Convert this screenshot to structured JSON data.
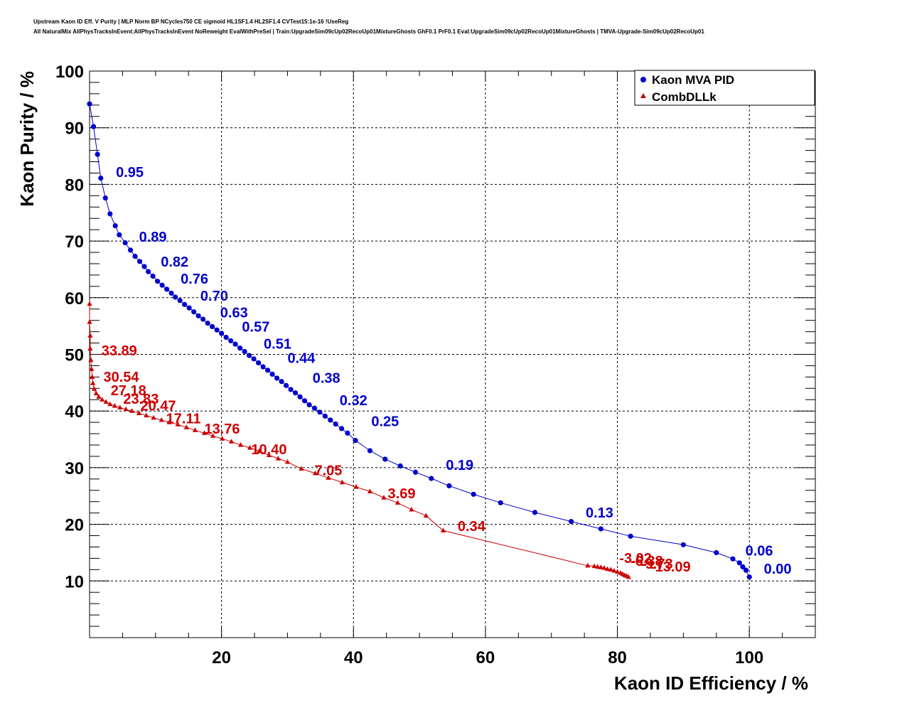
{
  "chart_data": {
    "type": "scatter",
    "title": [
      "Upstream Kaon ID Eff. V Purity | MLP Norm BP NCycles750 CE sigmoid HL1SF1.4 HL2SF1.4 CVTest15:1e-16 !UseReg",
      "All NaturalMix AllPhysTracksInEvent:AllPhysTracksInEvent NoReweight EvalWithPreSel | Train:UpgradeSim09cUp02RecoUp01MixtureGhosts GhF0.1 PrF0.1 Eval:UpgradeSim09cUp02RecoUp01MixtureGhosts | TMVA-Upgrade-Sim09cUp02RecoUp01"
    ],
    "xlabel": "Kaon ID Efficiency / %",
    "ylabel": "Kaon Purity / %",
    "xlim": [
      0,
      110
    ],
    "ylim": [
      0,
      100
    ],
    "xticks": [
      "20",
      "40",
      "60",
      "80",
      "100"
    ],
    "yticks": [
      "10",
      "20",
      "30",
      "40",
      "50",
      "60",
      "70",
      "80",
      "90",
      "100"
    ],
    "grid": true,
    "legend_position": "top-right",
    "series": [
      {
        "name": "Kaon MVA PID",
        "color": "#0000cc",
        "marker": "circle",
        "points": [
          [
            0.0,
            94.2
          ],
          [
            0.6,
            90.2
          ],
          [
            1.2,
            85.3
          ],
          [
            1.7,
            81.1
          ],
          [
            2.4,
            77.6
          ],
          [
            3.1,
            74.8
          ],
          [
            3.9,
            72.7
          ],
          [
            4.5,
            71.1
          ],
          [
            5.4,
            69.7
          ],
          [
            6.2,
            68.4
          ],
          [
            6.9,
            67.3
          ],
          [
            7.6,
            66.4
          ],
          [
            8.3,
            65.5
          ],
          [
            8.9,
            64.6
          ],
          [
            9.6,
            63.8
          ],
          [
            10.3,
            62.9
          ],
          [
            11.0,
            62.2
          ],
          [
            11.7,
            61.5
          ],
          [
            12.4,
            60.8
          ],
          [
            13.0,
            60.1
          ],
          [
            13.7,
            59.5
          ],
          [
            14.4,
            58.8
          ],
          [
            15.1,
            58.2
          ],
          [
            15.8,
            57.5
          ],
          [
            16.5,
            56.8
          ],
          [
            17.2,
            56.2
          ],
          [
            17.9,
            55.5
          ],
          [
            18.6,
            54.9
          ],
          [
            19.3,
            54.3
          ],
          [
            20.0,
            53.7
          ],
          [
            20.7,
            53.0
          ],
          [
            21.4,
            52.4
          ],
          [
            22.1,
            51.8
          ],
          [
            22.8,
            51.1
          ],
          [
            23.5,
            50.5
          ],
          [
            24.2,
            49.8
          ],
          [
            24.9,
            49.2
          ],
          [
            25.6,
            48.5
          ],
          [
            26.3,
            47.8
          ],
          [
            27.0,
            47.2
          ],
          [
            27.7,
            46.5
          ],
          [
            28.4,
            45.8
          ],
          [
            29.1,
            45.2
          ],
          [
            29.8,
            44.5
          ],
          [
            30.5,
            43.8
          ],
          [
            31.2,
            43.2
          ],
          [
            31.9,
            42.5
          ],
          [
            32.6,
            41.8
          ],
          [
            33.3,
            41.1
          ],
          [
            34.1,
            40.5
          ],
          [
            34.9,
            39.8
          ],
          [
            35.7,
            39.1
          ],
          [
            36.5,
            38.4
          ],
          [
            37.3,
            37.7
          ],
          [
            38.2,
            36.9
          ],
          [
            39.1,
            36.1
          ],
          [
            40.3,
            34.8
          ],
          [
            42.5,
            33.0
          ],
          [
            44.8,
            31.5
          ],
          [
            47.1,
            30.3
          ],
          [
            49.4,
            29.2
          ],
          [
            51.8,
            28.1
          ],
          [
            54.5,
            26.8
          ],
          [
            58.2,
            25.3
          ],
          [
            62.3,
            23.8
          ],
          [
            67.5,
            22.1
          ],
          [
            73.0,
            20.5
          ],
          [
            77.5,
            19.2
          ],
          [
            82.0,
            17.9
          ],
          [
            90.0,
            16.4
          ],
          [
            95.0,
            15.0
          ],
          [
            97.5,
            13.9
          ],
          [
            98.5,
            13.2
          ],
          [
            99.0,
            12.5
          ],
          [
            99.5,
            11.9
          ],
          [
            100.0,
            10.7
          ]
        ],
        "annotations": [
          {
            "text": "0.95",
            "x": 4.0,
            "y": 81.3
          },
          {
            "text": "0.89",
            "x": 7.5,
            "y": 69.9
          },
          {
            "text": "0.82",
            "x": 10.8,
            "y": 65.5
          },
          {
            "text": "0.76",
            "x": 13.8,
            "y": 62.5
          },
          {
            "text": "0.70",
            "x": 16.8,
            "y": 59.5
          },
          {
            "text": "0.63",
            "x": 19.8,
            "y": 56.5
          },
          {
            "text": "0.57",
            "x": 23.1,
            "y": 54.0
          },
          {
            "text": "0.51",
            "x": 26.4,
            "y": 51.0
          },
          {
            "text": "0.44",
            "x": 30.0,
            "y": 48.5
          },
          {
            "text": "0.38",
            "x": 33.8,
            "y": 45.0
          },
          {
            "text": "0.32",
            "x": 37.9,
            "y": 41.0
          },
          {
            "text": "0.25",
            "x": 42.7,
            "y": 37.3
          },
          {
            "text": "0.19",
            "x": 54.0,
            "y": 29.6
          },
          {
            "text": "0.13",
            "x": 75.2,
            "y": 21.2
          },
          {
            "text": "0.06",
            "x": 99.4,
            "y": 14.5
          },
          {
            "text": "0.00",
            "x": 102.2,
            "y": 11.3
          }
        ]
      },
      {
        "name": "CombDLLk",
        "color": "#cc0000",
        "marker": "triangle",
        "points": [
          [
            0.0,
            58.9
          ],
          [
            0.0,
            55.7
          ],
          [
            0.1,
            53.3
          ],
          [
            0.1,
            51.0
          ],
          [
            0.2,
            49.0
          ],
          [
            0.3,
            47.4
          ],
          [
            0.4,
            46.0
          ],
          [
            0.5,
            44.9
          ],
          [
            0.7,
            43.9
          ],
          [
            1.0,
            43.1
          ],
          [
            1.4,
            42.5
          ],
          [
            1.9,
            42.0
          ],
          [
            2.5,
            41.6
          ],
          [
            3.1,
            41.2
          ],
          [
            3.8,
            40.9
          ],
          [
            4.6,
            40.6
          ],
          [
            5.5,
            40.3
          ],
          [
            6.4,
            40.0
          ],
          [
            7.5,
            39.6
          ],
          [
            8.6,
            39.2
          ],
          [
            9.7,
            38.8
          ],
          [
            10.9,
            38.4
          ],
          [
            12.1,
            38.0
          ],
          [
            13.4,
            37.6
          ],
          [
            14.7,
            37.1
          ],
          [
            16.0,
            36.6
          ],
          [
            17.4,
            36.1
          ],
          [
            18.7,
            35.6
          ],
          [
            20.1,
            35.1
          ],
          [
            21.5,
            34.6
          ],
          [
            22.9,
            34.0
          ],
          [
            24.3,
            33.5
          ],
          [
            25.7,
            32.9
          ],
          [
            27.2,
            32.2
          ],
          [
            28.6,
            31.6
          ],
          [
            30.0,
            31.0
          ],
          [
            32.1,
            29.8
          ],
          [
            34.2,
            29.0
          ],
          [
            36.2,
            28.2
          ],
          [
            38.3,
            27.4
          ],
          [
            40.4,
            26.6
          ],
          [
            42.5,
            25.8
          ],
          [
            44.6,
            24.7
          ],
          [
            46.7,
            23.8
          ],
          [
            48.8,
            22.6
          ],
          [
            51.0,
            21.5
          ],
          [
            53.6,
            18.9
          ],
          [
            75.5,
            12.7
          ],
          [
            76.5,
            12.6
          ],
          [
            77.0,
            12.5
          ],
          [
            77.5,
            12.4
          ],
          [
            78.0,
            12.3
          ],
          [
            78.5,
            12.1
          ],
          [
            79.0,
            12.0
          ],
          [
            79.5,
            11.8
          ],
          [
            80.0,
            11.6
          ],
          [
            80.5,
            11.4
          ],
          [
            80.8,
            11.2
          ],
          [
            81.1,
            11.0
          ],
          [
            81.4,
            10.9
          ],
          [
            81.7,
            10.7
          ]
        ],
        "annotations": [
          {
            "text": "33.89",
            "x": 1.8,
            "y": 49.8
          },
          {
            "text": "30.54",
            "x": 2.1,
            "y": 45.2
          },
          {
            "text": "27.18",
            "x": 3.2,
            "y": 42.8
          },
          {
            "text": "23.83",
            "x": 5.1,
            "y": 41.3
          },
          {
            "text": "20.47",
            "x": 7.7,
            "y": 40.1
          },
          {
            "text": "17.11",
            "x": 11.6,
            "y": 37.8
          },
          {
            "text": "13.76",
            "x": 17.4,
            "y": 36.0
          },
          {
            "text": "10.40",
            "x": 24.5,
            "y": 32.4
          },
          {
            "text": "7.05",
            "x": 34.1,
            "y": 28.7
          },
          {
            "text": "3.69",
            "x": 45.2,
            "y": 24.6
          },
          {
            "text": "0.34",
            "x": 55.8,
            "y": 18.8
          },
          {
            "text": "-3.02",
            "x": 80.3,
            "y": 13.2
          },
          {
            "text": "-6.38",
            "x": 82.0,
            "y": 12.7
          },
          {
            "text": "-9.73",
            "x": 83.5,
            "y": 12.2
          },
          {
            "text": "-13.09",
            "x": 85.0,
            "y": 11.7
          }
        ]
      }
    ]
  }
}
